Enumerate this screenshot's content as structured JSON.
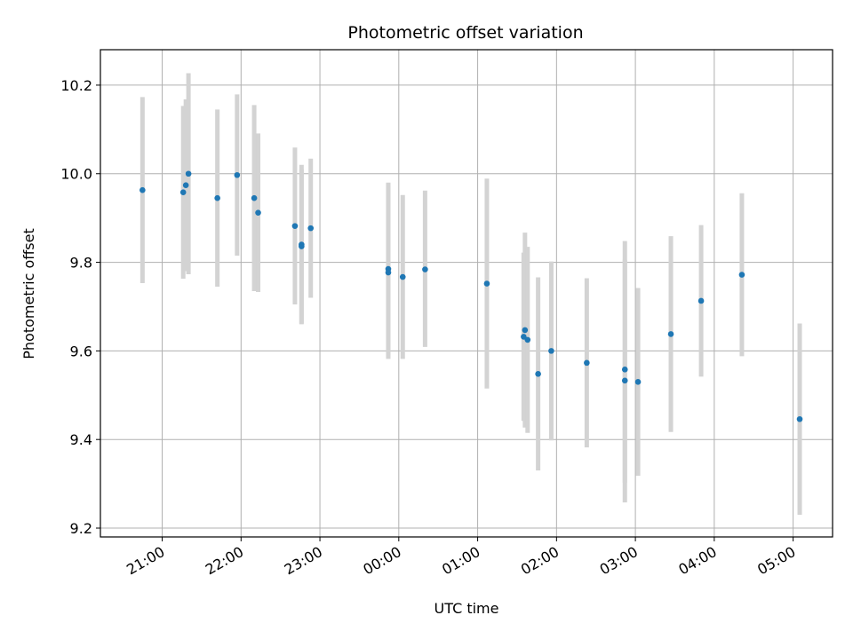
{
  "chart_data": {
    "type": "scatter",
    "title": "Photometric offset variation",
    "xlabel": "UTC time",
    "ylabel": "Photometric offset",
    "x_axis": "UTC time of night, starting the evening before",
    "x_ticks": [
      "21:00",
      "22:00",
      "23:00",
      "00:00",
      "01:00",
      "02:00",
      "03:00",
      "04:00",
      "05:00"
    ],
    "xlim": [
      "20:13",
      "05:30"
    ],
    "ylim": [
      9.18,
      10.28
    ],
    "y_ticks": [
      "9.2",
      "9.4",
      "9.6",
      "9.8",
      "10.0",
      "10.2"
    ],
    "grid": true,
    "colors": {
      "point": "#1f77b4",
      "errorbar": "#d3d3d3",
      "grid": "#b0b0b0"
    },
    "points": [
      {
        "x": "20:45",
        "y": 9.963,
        "lo": 9.753,
        "hi": 10.173
      },
      {
        "x": "21:16",
        "y": 9.958,
        "lo": 9.763,
        "hi": 10.153
      },
      {
        "x": "21:18",
        "y": 9.974,
        "lo": 9.78,
        "hi": 10.168
      },
      {
        "x": "21:20",
        "y": 10.0,
        "lo": 9.773,
        "hi": 10.227
      },
      {
        "x": "21:42",
        "y": 9.945,
        "lo": 9.745,
        "hi": 10.145
      },
      {
        "x": "21:57",
        "y": 9.997,
        "lo": 9.815,
        "hi": 10.179
      },
      {
        "x": "22:10",
        "y": 9.945,
        "lo": 9.735,
        "hi": 10.155
      },
      {
        "x": "22:13",
        "y": 9.912,
        "lo": 9.733,
        "hi": 10.091
      },
      {
        "x": "22:41",
        "y": 9.882,
        "lo": 9.705,
        "hi": 10.059
      },
      {
        "x": "22:46",
        "y": 9.84,
        "lo": 9.66,
        "hi": 10.02
      },
      {
        "x": "22:46",
        "y": 9.836,
        "lo": 9.662,
        "hi": 10.01
      },
      {
        "x": "22:53",
        "y": 9.877,
        "lo": 9.72,
        "hi": 10.034
      },
      {
        "x": "23:52",
        "y": 9.785,
        "lo": 9.59,
        "hi": 9.98
      },
      {
        "x": "23:52",
        "y": 9.777,
        "lo": 9.582,
        "hi": 9.972
      },
      {
        "x": "00:03",
        "y": 9.767,
        "lo": 9.582,
        "hi": 9.952
      },
      {
        "x": "00:20",
        "y": 9.784,
        "lo": 9.609,
        "hi": 9.962
      },
      {
        "x": "01:07",
        "y": 9.752,
        "lo": 9.515,
        "hi": 9.989
      },
      {
        "x": "01:35",
        "y": 9.632,
        "lo": 9.442,
        "hi": 9.822
      },
      {
        "x": "01:36",
        "y": 9.647,
        "lo": 9.427,
        "hi": 9.867
      },
      {
        "x": "01:38",
        "y": 9.625,
        "lo": 9.415,
        "hi": 9.835
      },
      {
        "x": "01:46",
        "y": 9.548,
        "lo": 9.33,
        "hi": 9.766
      },
      {
        "x": "01:56",
        "y": 9.6,
        "lo": 9.398,
        "hi": 9.802
      },
      {
        "x": "02:23",
        "y": 9.573,
        "lo": 9.382,
        "hi": 9.764
      },
      {
        "x": "02:52",
        "y": 9.558,
        "lo": 9.302,
        "hi": 9.806
      },
      {
        "x": "02:52",
        "y": 9.533,
        "lo": 9.258,
        "hi": 9.848
      },
      {
        "x": "03:02",
        "y": 9.53,
        "lo": 9.318,
        "hi": 9.742
      },
      {
        "x": "03:27",
        "y": 9.638,
        "lo": 9.417,
        "hi": 9.859
      },
      {
        "x": "03:50",
        "y": 9.713,
        "lo": 9.542,
        "hi": 9.884
      },
      {
        "x": "04:21",
        "y": 9.772,
        "lo": 9.588,
        "hi": 9.956
      },
      {
        "x": "05:05",
        "y": 9.446,
        "lo": 9.23,
        "hi": 9.662
      }
    ]
  }
}
